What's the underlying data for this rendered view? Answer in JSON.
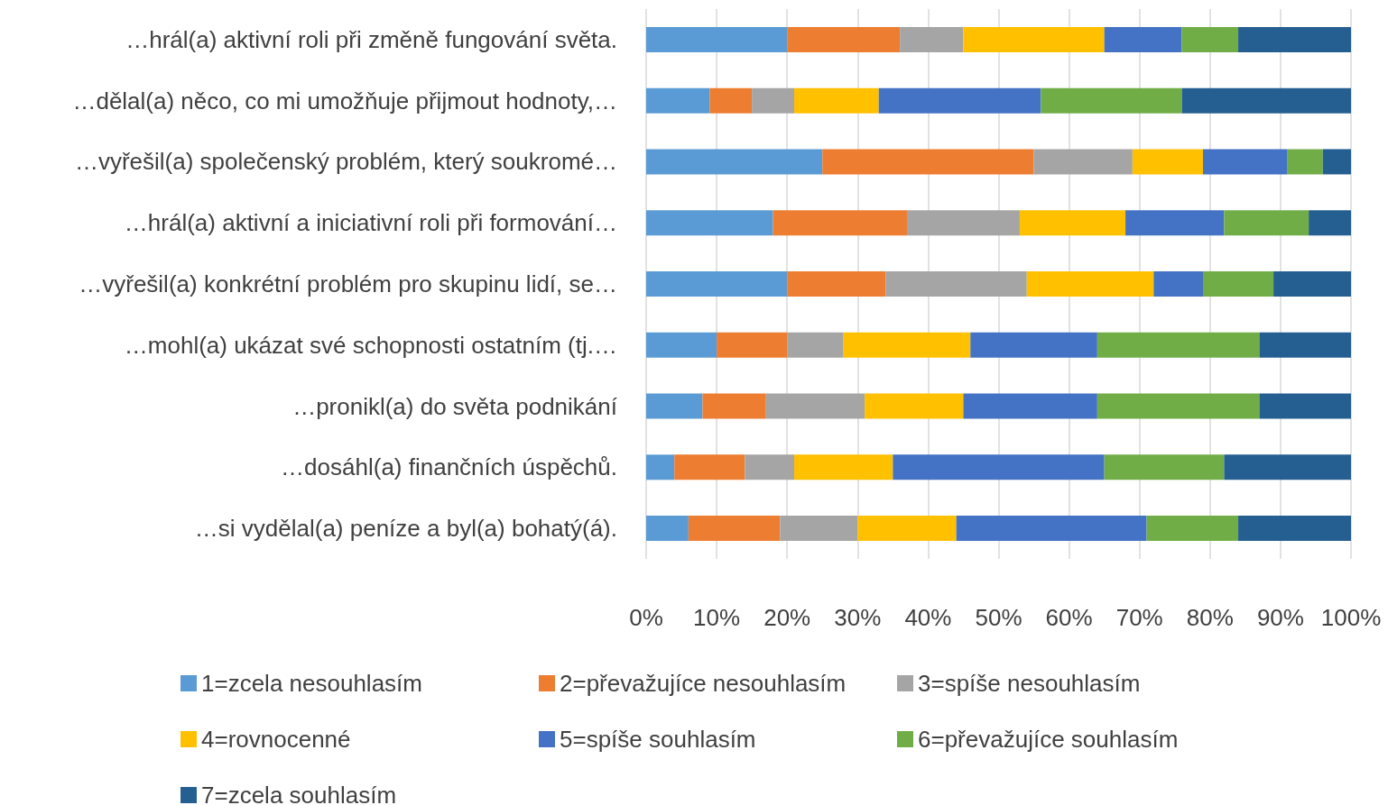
{
  "chart_data": {
    "type": "bar",
    "orientation": "horizontal",
    "stacked": true,
    "categories": [
      "…hrál(a) aktivní roli při změně fungování světa.",
      "…dělal(a) něco, co mi umožňuje přijmout hodnoty,…",
      "…vyřešil(a) společenský problém, který soukromé…",
      "…hrál(a) aktivní a iniciativní roli při formování…",
      "…vyřešil(a) konkrétní problém pro skupinu lidí, se…",
      "…mohl(a) ukázat své schopnosti ostatním (tj.…",
      "…pronikl(a) do světa podnikání",
      "…dosáhl(a) finančních úspěchů.",
      "…si vydělal(a) peníze a byl(a) bohatý(á)."
    ],
    "series": [
      {
        "name": "1=zcela nesouhlasím",
        "color": "#5b9bd5",
        "values": [
          20,
          9,
          25,
          18,
          20,
          10,
          8,
          4,
          6
        ]
      },
      {
        "name": "2=převažujíce nesouhlasím",
        "color": "#ed7d31",
        "values": [
          16,
          6,
          30,
          19,
          14,
          10,
          9,
          10,
          13
        ]
      },
      {
        "name": "3=spíše nesouhlasím",
        "color": "#a5a5a5",
        "values": [
          9,
          6,
          14,
          16,
          20,
          8,
          14,
          7,
          11
        ]
      },
      {
        "name": "4=rovnocenné",
        "color": "#ffc000",
        "values": [
          20,
          12,
          10,
          15,
          18,
          18,
          14,
          14,
          14
        ]
      },
      {
        "name": "5=spíše souhlasím",
        "color": "#4472c4",
        "values": [
          11,
          23,
          12,
          14,
          7,
          18,
          19,
          30,
          27
        ]
      },
      {
        "name": "6=převažujíce souhlasím",
        "color": "#70ad47",
        "values": [
          8,
          20,
          5,
          12,
          10,
          23,
          23,
          17,
          13
        ]
      },
      {
        "name": "7=zcela souhlasím",
        "color": "#255e91",
        "values": [
          16,
          24,
          4,
          6,
          11,
          13,
          13,
          18,
          16
        ]
      }
    ],
    "xlim": [
      0,
      100
    ],
    "xticks": [
      {
        "value": 0,
        "label": "0%"
      },
      {
        "value": 10,
        "label": "10%"
      },
      {
        "value": 20,
        "label": "20%"
      },
      {
        "value": 30,
        "label": "30%"
      },
      {
        "value": 40,
        "label": "40%"
      },
      {
        "value": 50,
        "label": "50%"
      },
      {
        "value": 60,
        "label": "60%"
      },
      {
        "value": 70,
        "label": "70%"
      },
      {
        "value": 80,
        "label": "80%"
      },
      {
        "value": 90,
        "label": "90%"
      },
      {
        "value": 100,
        "label": "100%"
      }
    ],
    "grid": "x",
    "legend": "bottom"
  }
}
